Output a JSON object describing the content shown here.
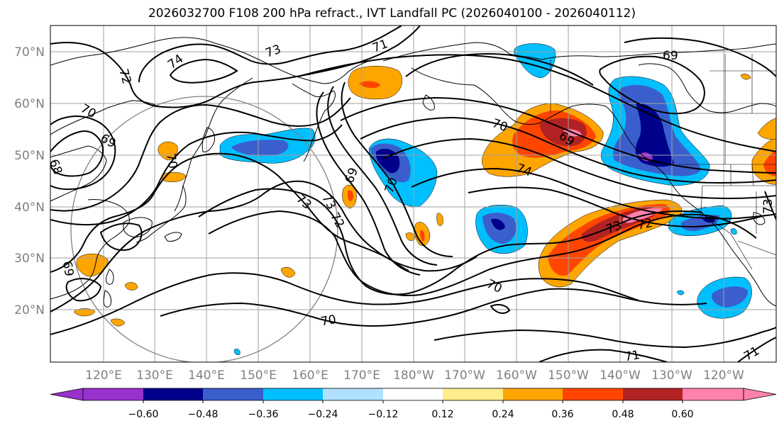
{
  "title": "2026032700 F108 200 hPa refract., IVT Landfall PC (2026040100 - 2026040112)",
  "lat_labels": [
    "20°N",
    "30°N",
    "40°N",
    "50°N",
    "60°N",
    "70°N"
  ],
  "lon_labels": [
    "120°E",
    "130°E",
    "140°E",
    "150°E",
    "160°E",
    "170°E",
    "180°W",
    "170°W",
    "160°W",
    "150°W",
    "140°W",
    "130°W",
    "120°W"
  ],
  "contour_labels": [
    "74",
    "73",
    "72",
    "71",
    "70",
    "69",
    "68",
    "73",
    "70",
    "69",
    "70",
    "69",
    "73",
    "72",
    "70",
    "74",
    "69",
    "70",
    "73",
    "72",
    "70",
    "71",
    "71",
    "73",
    "69"
  ],
  "colorbar": {
    "tick_labels": [
      "−0.60",
      "−0.48",
      "−0.36",
      "−0.24",
      "−0.12",
      "0.12",
      "0.24",
      "0.36",
      "0.48",
      "0.60"
    ],
    "colors": [
      "#9932cc",
      "#00008b",
      "#3a5fcd",
      "#00bfff",
      "#b0e2ff",
      "#ffffff",
      "#ffec8b",
      "#ffa500",
      "#ff4500",
      "#b22222",
      "#ff82ab"
    ]
  },
  "colors": {
    "contour": "#000000",
    "coastline": "#000000",
    "gridline": "#a0a0a0",
    "circle": "#808080",
    "axis_label": "#808080"
  }
}
